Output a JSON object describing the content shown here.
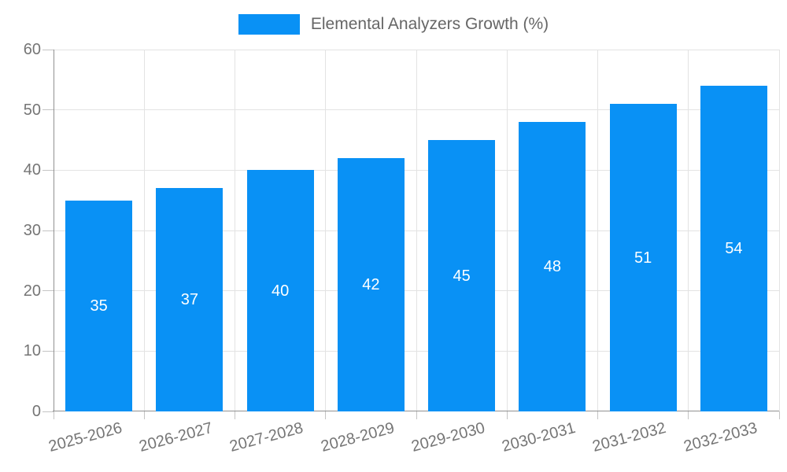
{
  "legend": {
    "label": "Elemental Analyzers Growth (%)",
    "position": "top"
  },
  "chart_data": {
    "type": "bar",
    "title": "",
    "xlabel": "",
    "ylabel": "",
    "categories": [
      "2025-2026",
      "2026-2027",
      "2027-2028",
      "2028-2029",
      "2029-2030",
      "2030-2031",
      "2031-2032",
      "2032-2033"
    ],
    "values": [
      35,
      37,
      40,
      42,
      45,
      48,
      51,
      54
    ],
    "series_name": "Elemental Analyzers Growth (%)",
    "ylim": [
      0,
      60
    ],
    "yticks": [
      0,
      10,
      20,
      30,
      40,
      50,
      60
    ],
    "grid": true,
    "legend_position": "top",
    "bar_labels_visible": true
  },
  "colors": {
    "bar": "#0991f5",
    "grid": "#e3e3e3",
    "axis": "#919191",
    "tick": "#c4c4c4",
    "axis_text": "#757575",
    "legend_text": "#666666",
    "bar_label_text": "#ffffff",
    "background": "#ffffff"
  }
}
